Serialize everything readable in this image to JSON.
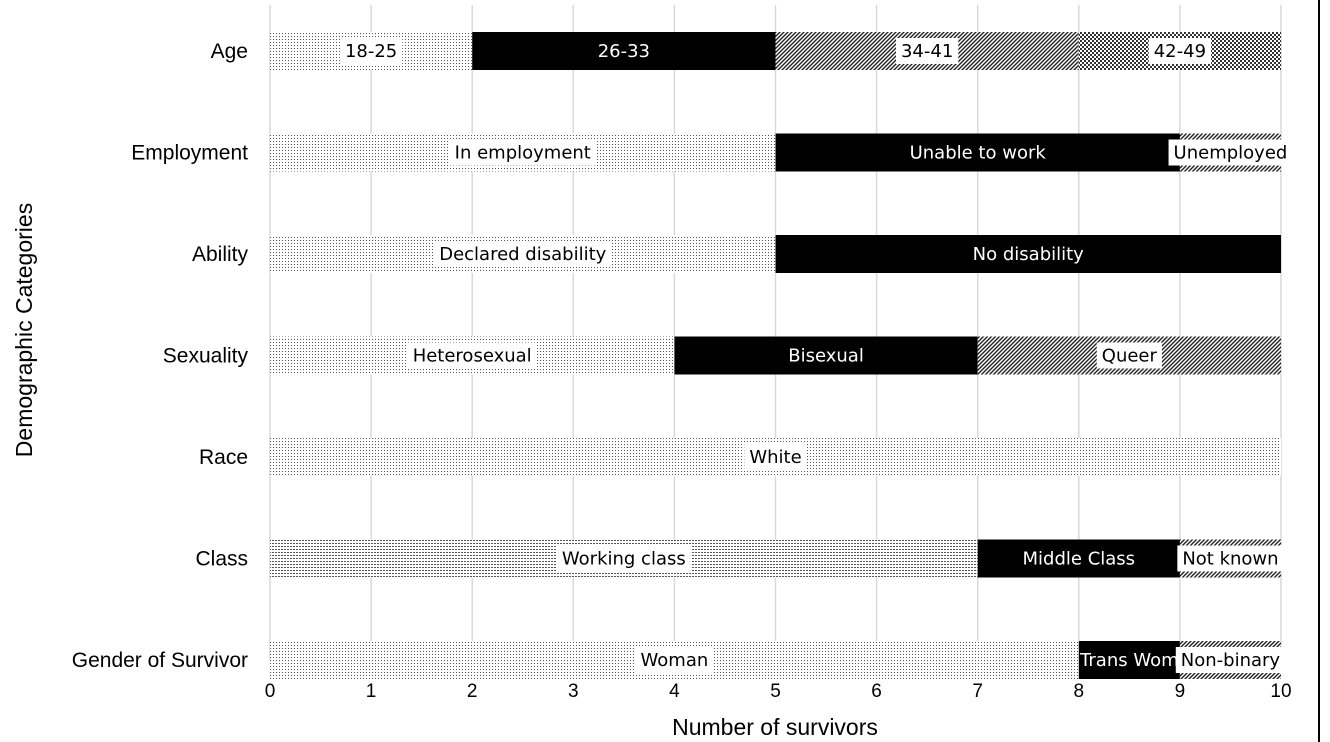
{
  "chart_data": {
    "type": "bar",
    "orientation": "horizontal",
    "stacked": true,
    "xlabel": "Number of survivors",
    "ylabel": "Demographic Categories",
    "xlim": [
      0,
      10
    ],
    "xticks": [
      "0",
      "1",
      "2",
      "3",
      "4",
      "5",
      "6",
      "7",
      "8",
      "9",
      "10"
    ],
    "grid": "vertical",
    "categories": [
      "Age",
      "Employment",
      "Ability",
      "Sexuality",
      "Race",
      "Class",
      "Gender of Survivor"
    ],
    "bars": [
      {
        "category": "Age",
        "segments": [
          {
            "label": "18-25",
            "value": 2,
            "pattern": "dots"
          },
          {
            "label": "26-33",
            "value": 3,
            "pattern": "solid"
          },
          {
            "label": "34-41",
            "value": 3,
            "pattern": "diagonal"
          },
          {
            "label": "42-49",
            "value": 2,
            "pattern": "checker"
          }
        ]
      },
      {
        "category": "Employment",
        "segments": [
          {
            "label": "In employment",
            "value": 5,
            "pattern": "dots"
          },
          {
            "label": "Unable to work",
            "value": 4,
            "pattern": "solid"
          },
          {
            "label": "Unemployed",
            "value": 1,
            "pattern": "diagonal"
          }
        ]
      },
      {
        "category": "Ability",
        "segments": [
          {
            "label": "Declared disability",
            "value": 5,
            "pattern": "dots"
          },
          {
            "label": "No disability",
            "value": 5,
            "pattern": "solid"
          }
        ]
      },
      {
        "category": "Sexuality",
        "segments": [
          {
            "label": "Heterosexual",
            "value": 4,
            "pattern": "dots"
          },
          {
            "label": "Bisexual",
            "value": 3,
            "pattern": "solid"
          },
          {
            "label": "Queer",
            "value": 3,
            "pattern": "diagonal"
          }
        ]
      },
      {
        "category": "Race",
        "segments": [
          {
            "label": "White",
            "value": 10,
            "pattern": "dots"
          }
        ]
      },
      {
        "category": "Class",
        "segments": [
          {
            "label": "Working class",
            "value": 7,
            "pattern": "hlines"
          },
          {
            "label": "Middle Class",
            "value": 2,
            "pattern": "solid"
          },
          {
            "label": "Not known",
            "value": 1,
            "pattern": "diagonal"
          }
        ]
      },
      {
        "category": "Gender of Survivor",
        "segments": [
          {
            "label": "Woman",
            "value": 8,
            "pattern": "dots"
          },
          {
            "label": "Trans Wom",
            "value": 1,
            "pattern": "solid"
          },
          {
            "label": "Non-binary",
            "value": 1,
            "pattern": "diagonal"
          }
        ]
      }
    ],
    "colors": {
      "solid": "#000000",
      "pattern_ink": "#222222",
      "grid": "#d9d9d9",
      "background": "#ffffff"
    }
  }
}
